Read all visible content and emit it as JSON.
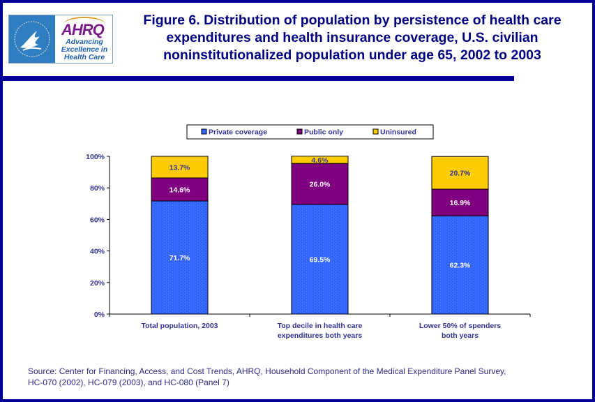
{
  "header": {
    "logo_hhs_alt": "Department of Health & Human Services USA",
    "logo_ahrq_name": "AHRQ",
    "logo_ahrq_tagline": [
      "Advancing",
      "Excellence in",
      "Health Care"
    ],
    "title": "Figure 6. Distribution of population by persistence of health care expenditures and health insurance coverage, U.S. civilian noninstitutionalized population under age 65, 2002 to 2003"
  },
  "colors": {
    "frame": "#000099",
    "title": "#000080",
    "private": "#3366ff",
    "public": "#800080",
    "uninsured": "#ffcc00",
    "axis_text": "#333399"
  },
  "chart_data": {
    "type": "bar",
    "stacked": true,
    "title": "Figure 6. Distribution of population by persistence of health care expenditures and health insurance coverage, U.S. civilian noninstitutionalized population under age 65, 2002 to 2003",
    "categories": [
      [
        "Total population, 2003"
      ],
      [
        "Top decile in health care",
        "expenditures both years"
      ],
      [
        "Lower 50% of spenders",
        "both years"
      ]
    ],
    "series": [
      {
        "name": "Private coverage",
        "values": [
          71.7,
          69.5,
          62.3
        ],
        "labels": [
          "71.7%",
          "69.5%",
          "62.3%"
        ],
        "color": "#3366ff",
        "label_color": "#ffffff"
      },
      {
        "name": "Public only",
        "values": [
          14.6,
          26.0,
          16.9
        ],
        "labels": [
          "14.6%",
          "26.0%",
          "16.9%"
        ],
        "color": "#800080",
        "label_color": "#ffffff"
      },
      {
        "name": "Uninsured",
        "values": [
          13.7,
          4.6,
          20.7
        ],
        "labels": [
          "13.7%",
          "4.6%",
          "20.7%"
        ],
        "color": "#ffcc00",
        "label_color": "#333399"
      }
    ],
    "xlabel": "",
    "ylabel": "",
    "ylim": [
      0,
      100
    ],
    "yticks": [
      "0%",
      "20%",
      "40%",
      "60%",
      "80%",
      "100%"
    ],
    "grid": false,
    "legend": "top-center"
  },
  "source": {
    "line1": "Source: Center for Financing, Access, and Cost Trends, AHRQ, Household Component of the Medical Expenditure Panel Survey,",
    "line2": "HC-070 (2002), HC-079 (2003), and HC-080 (Panel 7)"
  }
}
